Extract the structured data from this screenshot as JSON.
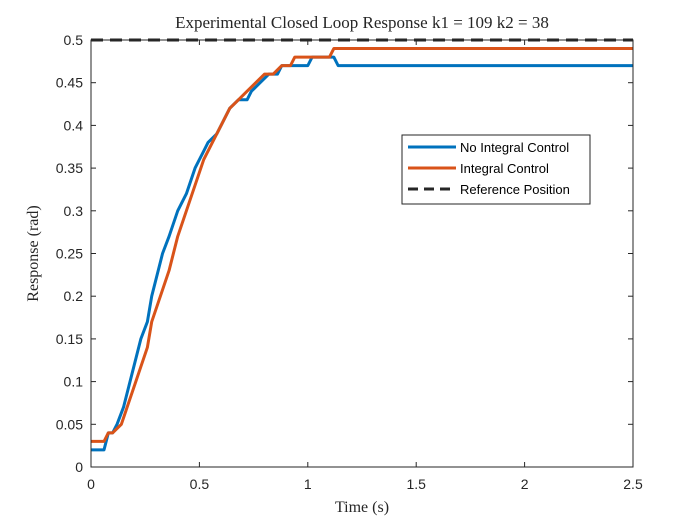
{
  "chart_data": {
    "type": "line",
    "title": "Experimental Closed Loop Response k1 = 109 k2 = 38",
    "xlabel": "Time (s)",
    "ylabel": "Response (rad)",
    "xlim": [
      0,
      2.5
    ],
    "ylim": [
      0,
      0.5
    ],
    "xticks": [
      0,
      0.5,
      1,
      1.5,
      2,
      2.5
    ],
    "xtick_labels": [
      "0",
      "0.5",
      "1",
      "1.5",
      "2",
      "2.5"
    ],
    "yticks": [
      0,
      0.05,
      0.1,
      0.15,
      0.2,
      0.25,
      0.3,
      0.35,
      0.4,
      0.45,
      0.5
    ],
    "ytick_labels": [
      "0",
      "0.05",
      "0.1",
      "0.15",
      "0.2",
      "0.25",
      "0.3",
      "0.35",
      "0.4",
      "0.45",
      "0.5"
    ],
    "grid": false,
    "legend_position": "right",
    "series": [
      {
        "name": "No Integral Control",
        "color": "#0072BD",
        "style": "solid",
        "x": [
          0,
          0.06,
          0.08,
          0.1,
          0.12,
          0.15,
          0.18,
          0.2,
          0.23,
          0.26,
          0.28,
          0.3,
          0.33,
          0.36,
          0.4,
          0.44,
          0.48,
          0.52,
          0.54,
          0.58,
          0.62,
          0.64,
          0.68,
          0.72,
          0.74,
          0.78,
          0.82,
          0.86,
          0.88,
          0.92,
          0.96,
          1.0,
          1.02,
          1.06,
          1.1,
          1.12,
          1.14,
          1.2,
          1.4,
          1.6,
          1.8,
          2.0,
          2.2,
          2.4,
          2.5
        ],
        "y": [
          0.02,
          0.02,
          0.04,
          0.04,
          0.05,
          0.07,
          0.1,
          0.12,
          0.15,
          0.17,
          0.2,
          0.22,
          0.25,
          0.27,
          0.3,
          0.32,
          0.35,
          0.37,
          0.38,
          0.39,
          0.41,
          0.42,
          0.43,
          0.43,
          0.44,
          0.45,
          0.46,
          0.46,
          0.47,
          0.47,
          0.47,
          0.47,
          0.48,
          0.48,
          0.48,
          0.48,
          0.47,
          0.47,
          0.47,
          0.47,
          0.47,
          0.47,
          0.47,
          0.47,
          0.47
        ]
      },
      {
        "name": "Integral Control",
        "color": "#D95319",
        "style": "solid",
        "x": [
          0,
          0.04,
          0.06,
          0.08,
          0.1,
          0.12,
          0.14,
          0.18,
          0.22,
          0.26,
          0.28,
          0.32,
          0.36,
          0.4,
          0.44,
          0.48,
          0.52,
          0.56,
          0.6,
          0.64,
          0.68,
          0.72,
          0.76,
          0.8,
          0.84,
          0.88,
          0.92,
          0.94,
          0.98,
          1.02,
          1.06,
          1.1,
          1.12,
          1.16,
          1.3,
          1.5,
          1.7,
          1.9,
          2.1,
          2.3,
          2.5
        ],
        "y": [
          0.03,
          0.03,
          0.03,
          0.04,
          0.04,
          0.045,
          0.05,
          0.08,
          0.11,
          0.14,
          0.17,
          0.2,
          0.23,
          0.27,
          0.3,
          0.33,
          0.36,
          0.38,
          0.4,
          0.42,
          0.43,
          0.44,
          0.45,
          0.46,
          0.46,
          0.47,
          0.47,
          0.48,
          0.48,
          0.48,
          0.48,
          0.48,
          0.49,
          0.49,
          0.49,
          0.49,
          0.49,
          0.49,
          0.49,
          0.49,
          0.49
        ]
      },
      {
        "name": "Reference Position",
        "color": "#262626",
        "style": "dashed",
        "x": [
          0,
          2.5
        ],
        "y": [
          0.5,
          0.5
        ]
      }
    ]
  }
}
